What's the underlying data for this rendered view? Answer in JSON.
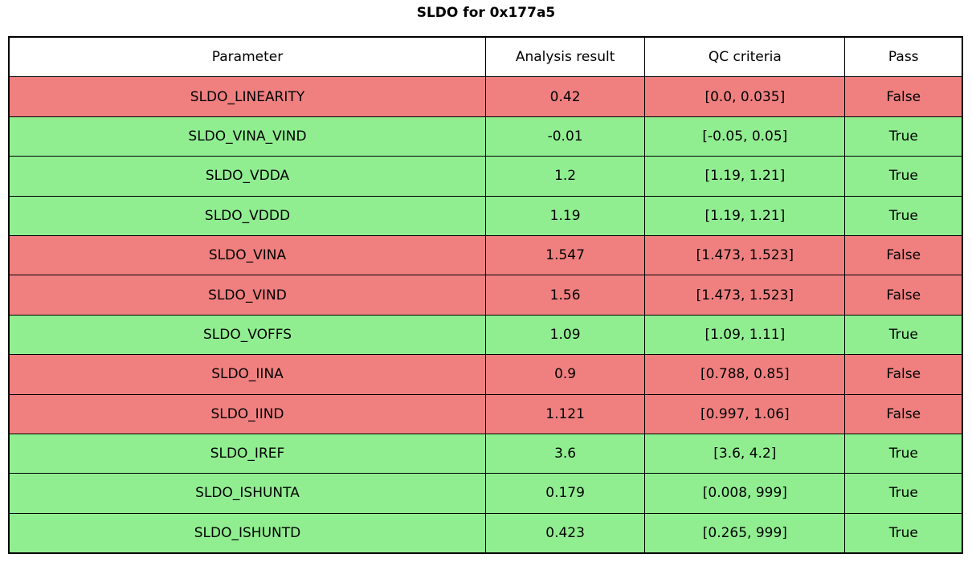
{
  "title": "SLDO for 0x177a5",
  "colors": {
    "pass_row": "#90ee90",
    "fail_row": "#f08080",
    "border": "#000000",
    "background": "#ffffff"
  },
  "chart_data": {
    "type": "table",
    "title": "SLDO for 0x177a5",
    "columns": [
      "Parameter",
      "Analysis result",
      "QC criteria",
      "Pass"
    ],
    "rows": [
      {
        "parameter": "SLDO_LINEARITY",
        "analysis_result": "0.42",
        "qc_criteria": "[0.0, 0.035]",
        "pass": "False",
        "status": "fail"
      },
      {
        "parameter": "SLDO_VINA_VIND",
        "analysis_result": "-0.01",
        "qc_criteria": "[-0.05, 0.05]",
        "pass": "True",
        "status": "pass"
      },
      {
        "parameter": "SLDO_VDDA",
        "analysis_result": "1.2",
        "qc_criteria": "[1.19, 1.21]",
        "pass": "True",
        "status": "pass"
      },
      {
        "parameter": "SLDO_VDDD",
        "analysis_result": "1.19",
        "qc_criteria": "[1.19, 1.21]",
        "pass": "True",
        "status": "pass"
      },
      {
        "parameter": "SLDO_VINA",
        "analysis_result": "1.547",
        "qc_criteria": "[1.473, 1.523]",
        "pass": "False",
        "status": "fail"
      },
      {
        "parameter": "SLDO_VIND",
        "analysis_result": "1.56",
        "qc_criteria": "[1.473, 1.523]",
        "pass": "False",
        "status": "fail"
      },
      {
        "parameter": "SLDO_VOFFS",
        "analysis_result": "1.09",
        "qc_criteria": "[1.09, 1.11]",
        "pass": "True",
        "status": "pass"
      },
      {
        "parameter": "SLDO_IINA",
        "analysis_result": "0.9",
        "qc_criteria": "[0.788, 0.85]",
        "pass": "False",
        "status": "fail"
      },
      {
        "parameter": "SLDO_IIND",
        "analysis_result": "1.121",
        "qc_criteria": "[0.997, 1.06]",
        "pass": "False",
        "status": "fail"
      },
      {
        "parameter": "SLDO_IREF",
        "analysis_result": "3.6",
        "qc_criteria": "[3.6, 4.2]",
        "pass": "True",
        "status": "pass"
      },
      {
        "parameter": "SLDO_ISHUNTA",
        "analysis_result": "0.179",
        "qc_criteria": "[0.008, 999]",
        "pass": "True",
        "status": "pass"
      },
      {
        "parameter": "SLDO_ISHUNTD",
        "analysis_result": "0.423",
        "qc_criteria": "[0.265, 999]",
        "pass": "True",
        "status": "pass"
      }
    ]
  }
}
